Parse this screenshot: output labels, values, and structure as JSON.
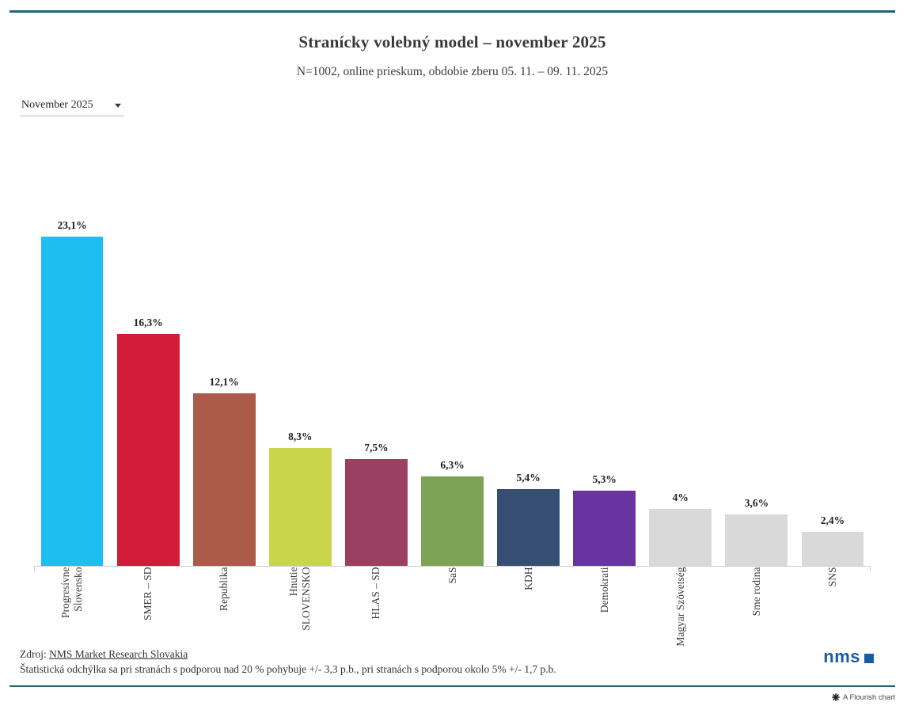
{
  "header": {
    "title": "Stranícky volebný model – november 2025",
    "subtitle": "N=1002, online prieskum, obdobie zberu 05. 11. – 09. 11. 2025"
  },
  "controls": {
    "period_selector": {
      "value": "November 2025"
    }
  },
  "chart_data": {
    "type": "bar",
    "title": "Stranícky volebný model – november 2025",
    "subtitle": "N=1002, online prieskum, obdobie zberu 05. 11. – 09. 11. 2025",
    "xlabel": "",
    "ylabel": "",
    "ylim": [
      0,
      30.7
    ],
    "grid": false,
    "legend": "none",
    "categories": [
      "Progresívne Slovensko",
      "SMER – SD",
      "Republika",
      "Hnutie SLOVENSKO",
      "HLAS – SD",
      "SaS",
      "KDH",
      "Demokrati",
      "Magyar Szövetség",
      "Sme rodina",
      "SNS"
    ],
    "values": [
      23.1,
      16.3,
      12.1,
      8.3,
      7.5,
      6.3,
      5.4,
      5.3,
      4,
      3.6,
      2.4
    ],
    "value_labels": [
      "23,1%",
      "16,3%",
      "12,1%",
      "8,3%",
      "7,5%",
      "6,3%",
      "5,4%",
      "5,3%",
      "4%",
      "3,6%",
      "2,4%"
    ],
    "bar_colors": [
      "#1fbef0",
      "#d21c3a",
      "#ac5a4a",
      "#c9d64b",
      "#9b4061",
      "#7da355",
      "#374e73",
      "#6a34a0",
      "#d9d9d9",
      "#d9d9d9",
      "#d9d9d9"
    ]
  },
  "footer": {
    "source_prefix": "Zdroj: ",
    "source_link": "NMS Market Research Slovakia",
    "note": "Štatistická odchýlka sa pri stranách s podporou nad 20 % pohybuje +/- 3,3 p.b., pri stranách s podporou okolo 5% +/- 1,7 p.b."
  },
  "branding": {
    "logo_text": "nms",
    "logo_color": "#1a5ca4"
  },
  "attribution": {
    "label": "A Flourish chart"
  },
  "colors": {
    "accent_rule": "#1e6876",
    "axis": "#cccccc"
  }
}
